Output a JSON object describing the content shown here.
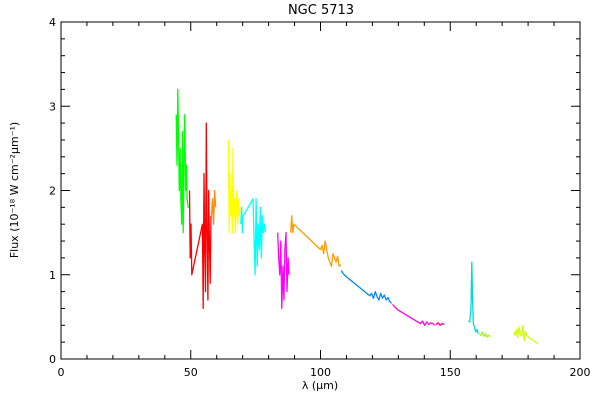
{
  "chart_data": {
    "type": "line",
    "title": "NGC 5713",
    "xlabel": "λ (μm)",
    "ylabel": "Flux (10⁻¹⁸ W cm⁻²μm⁻¹)",
    "xlim": [
      0,
      200
    ],
    "ylim": [
      0,
      4
    ],
    "x_ticks": [
      0,
      50,
      100,
      150,
      200
    ],
    "x_tick_labels": [
      "0",
      "50",
      "100",
      "150",
      "200"
    ],
    "y_ticks": [
      0,
      1,
      2,
      3,
      4
    ],
    "y_tick_labels": [
      "0",
      "1",
      "2",
      "3",
      "4"
    ],
    "x_minor_step": 10,
    "y_minor_step": 0.2,
    "grid": false,
    "legend": false,
    "series": [
      {
        "color": "#00ff00",
        "x": [
          44.4,
          44.7,
          45.0,
          45.3,
          45.6,
          45.9,
          46.2,
          46.5,
          46.8,
          47.1,
          47.4,
          47.7,
          48.0,
          48.3,
          48.6,
          49.0,
          49.3
        ],
        "y": [
          2.9,
          2.3,
          3.2,
          2.6,
          2.0,
          2.5,
          1.9,
          1.6,
          2.7,
          1.5,
          2.4,
          2.9,
          2.0,
          2.3,
          1.9,
          1.8,
          1.8
        ]
      },
      {
        "color": "#ff0000",
        "x": [
          49.5,
          49.8,
          50.1,
          50.4,
          54.5,
          54.8,
          55.1,
          55.4,
          55.7,
          56.0,
          56.3,
          56.6,
          56.9,
          57.2,
          57.5,
          57.8
        ],
        "y": [
          2.0,
          1.2,
          1.6,
          1.0,
          1.6,
          0.6,
          2.2,
          1.3,
          0.8,
          2.8,
          1.5,
          0.7,
          2.0,
          1.4,
          0.9,
          1.7
        ]
      },
      {
        "color": "#ff8c00",
        "x": [
          58.0,
          58.4,
          58.8,
          59.2,
          59.6
        ],
        "y": [
          1.7,
          1.9,
          1.6,
          2.0,
          1.8
        ]
      },
      {
        "color": "#ffff00",
        "x": [
          64.5,
          64.8,
          65.1,
          65.4,
          65.7,
          66.0,
          66.3,
          66.6,
          66.9,
          67.2,
          67.5,
          67.8,
          68.1,
          68.4,
          68.7,
          69.0
        ],
        "y": [
          2.6,
          1.5,
          2.2,
          1.7,
          2.0,
          1.5,
          2.5,
          1.7,
          1.9,
          1.5,
          1.8,
          2.0,
          1.6,
          1.9,
          1.7,
          1.8
        ]
      },
      {
        "color": "#00ffff",
        "x": [
          69.3,
          69.6,
          69.9,
          70.2,
          74.0,
          74.4,
          74.8,
          75.2,
          75.6,
          76.0,
          76.4,
          76.8,
          77.2,
          77.6,
          78.0,
          78.4,
          78.8
        ],
        "y": [
          1.6,
          1.8,
          1.5,
          1.7,
          1.9,
          1.4,
          1.0,
          1.9,
          1.1,
          1.6,
          1.3,
          1.8,
          1.2,
          1.7,
          1.5,
          1.6,
          1.5
        ]
      },
      {
        "color": "#ff00ff",
        "x": [
          83.5,
          83.9,
          84.3,
          84.7,
          85.1,
          85.5,
          85.9,
          86.3,
          86.7,
          87.1,
          87.5,
          87.9
        ],
        "y": [
          1.5,
          1.2,
          1.0,
          1.4,
          0.6,
          1.1,
          0.7,
          1.3,
          1.5,
          0.8,
          1.2,
          1.0
        ]
      },
      {
        "color": "#ff9a00",
        "x": [
          88.5,
          88.9,
          89.3,
          89.7,
          100.0,
          100.6,
          101.2,
          101.8,
          102.4,
          103.0,
          103.6,
          104.2,
          104.8,
          105.4,
          106.0,
          106.6,
          107.2,
          107.8
        ],
        "y": [
          1.5,
          1.7,
          1.5,
          1.6,
          1.3,
          1.35,
          1.25,
          1.4,
          1.3,
          1.2,
          1.15,
          1.1,
          1.25,
          1.2,
          1.15,
          1.22,
          1.1,
          1.12
        ]
      },
      {
        "color": "#0088ff",
        "x": [
          108.0,
          108.6,
          109.2,
          109.8,
          119.0,
          119.7,
          120.4,
          121.1,
          121.8,
          122.5,
          123.2,
          123.9,
          124.6,
          125.3,
          126.0,
          126.7,
          127.4
        ],
        "y": [
          1.05,
          1.02,
          1.0,
          0.98,
          0.75,
          0.78,
          0.72,
          0.8,
          0.74,
          0.7,
          0.78,
          0.72,
          0.76,
          0.7,
          0.73,
          0.68,
          0.66
        ]
      },
      {
        "color": "#ff00ff",
        "x": [
          127.8,
          128.5,
          129.2,
          129.9,
          138.5,
          139.3,
          140.1,
          140.9,
          141.7,
          142.5,
          143.3,
          144.1
        ],
        "y": [
          0.65,
          0.62,
          0.6,
          0.58,
          0.42,
          0.45,
          0.4,
          0.44,
          0.41,
          0.43,
          0.42,
          0.4
        ]
      },
      {
        "color": "#ff0088",
        "x": [
          144.5,
          145.3,
          146.1,
          146.9,
          147.7
        ],
        "y": [
          0.41,
          0.43,
          0.4,
          0.42,
          0.41
        ]
      },
      {
        "color": "#00d8d8",
        "x": [
          157.0,
          157.5,
          158.0,
          158.3,
          158.6,
          158.9,
          159.3,
          159.8,
          160.3,
          160.8
        ],
        "y": [
          0.45,
          0.44,
          0.6,
          1.15,
          0.7,
          0.42,
          0.38,
          0.32,
          0.35,
          0.3
        ]
      },
      {
        "color": "#9eff00",
        "x": [
          161.2,
          161.8,
          162.4,
          163.0,
          163.6,
          164.2,
          164.8,
          165.4
        ],
        "y": [
          0.3,
          0.28,
          0.32,
          0.27,
          0.3,
          0.26,
          0.28,
          0.27
        ]
      },
      {
        "color": "#cfff00",
        "x": [
          174.5,
          175.0,
          175.5,
          176.0,
          176.5,
          177.0,
          177.5,
          178.0,
          178.5,
          179.0,
          179.5,
          180.0,
          181.0,
          182.0,
          183.0,
          183.8
        ],
        "y": [
          0.32,
          0.28,
          0.35,
          0.25,
          0.38,
          0.3,
          0.27,
          0.4,
          0.22,
          0.33,
          0.28,
          0.26,
          0.24,
          0.22,
          0.2,
          0.18
        ]
      }
    ]
  }
}
